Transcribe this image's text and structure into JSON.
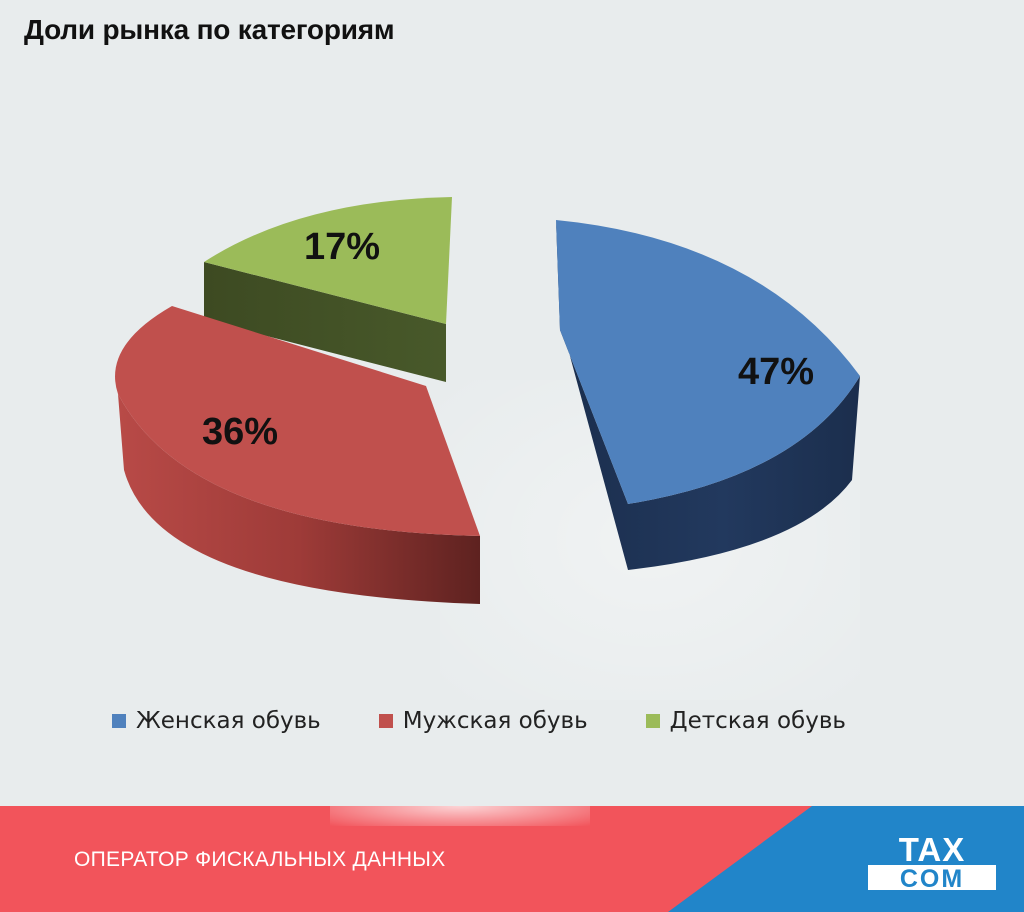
{
  "chart_data": {
    "type": "pie",
    "title": "Доли рынка по категориям",
    "categories": [
      "Женская обувь",
      "Мужская обувь",
      "Детская обувь"
    ],
    "values": [
      47,
      36,
      17
    ],
    "data_labels": [
      "47%",
      "36%",
      "17%"
    ],
    "colors": [
      "#4f81bd",
      "#c0504d",
      "#9bbb59"
    ],
    "style": "3d-exploded",
    "legend": "bottom"
  },
  "footer": {
    "tagline": "ОПЕРАТОР ФИСКАЛЬНЫХ ДАННЫХ",
    "logo_text": [
      "TAX",
      "COM"
    ],
    "colors": {
      "red": "#f2545b",
      "blue": "#2185c9"
    }
  }
}
